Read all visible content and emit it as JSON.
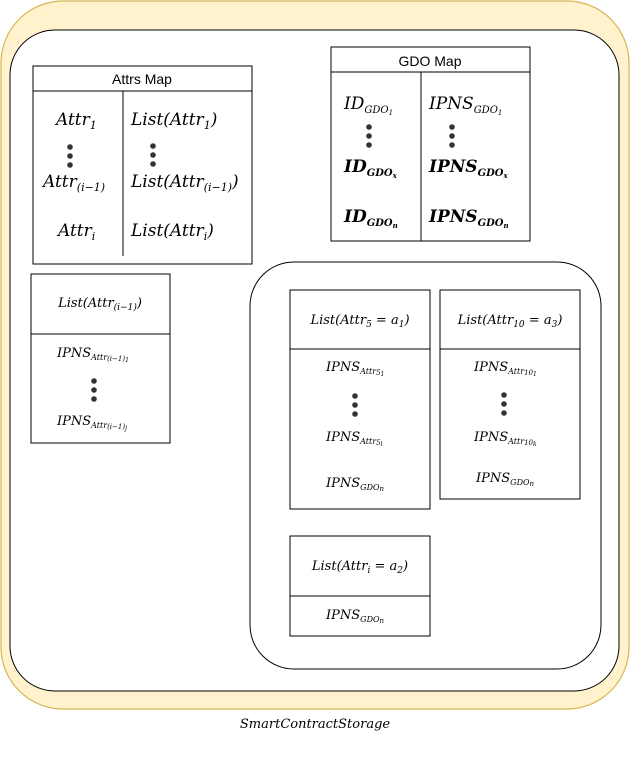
{
  "container": {
    "caption": "SmartContractStorage",
    "fill": "#fff2cc",
    "stroke": "#d6b656"
  },
  "attrs_map": {
    "title": "Attrs Map",
    "rows": [
      {
        "key": "Attr",
        "key_sub": "1",
        "value_pre": "List(Attr",
        "value_sub": "1",
        "value_post": ")"
      },
      {
        "key": "Attr",
        "key_sub": "(i−1)",
        "value_pre": "List(Attr",
        "value_sub": "(i−1)",
        "value_post": ")"
      },
      {
        "key": "Attr",
        "key_sub": "i",
        "value_pre": "List(Attr",
        "value_sub": "i",
        "value_post": ")"
      }
    ]
  },
  "gdo_map": {
    "title": "GDO Map",
    "rows": [
      {
        "key": "ID",
        "key_sub": "GDO",
        "key_subsub": "1",
        "value": "IPNS",
        "value_sub": "GDO",
        "value_subsub": "1",
        "bold": false
      },
      {
        "key": "ID",
        "key_sub": "GDO",
        "key_subsub": "x",
        "value": "IPNS",
        "value_sub": "GDO",
        "value_subsub": "x",
        "bold": true
      },
      {
        "key": "ID",
        "key_sub": "GDO",
        "key_subsub": "n",
        "value": "IPNS",
        "value_sub": "GDO",
        "value_subsub": "n",
        "bold": true
      }
    ]
  },
  "list_attr_i1": {
    "header_pre": "List(Attr",
    "header_sub": "(i−1)",
    "header_post": ")",
    "items": [
      {
        "main": "IPNS",
        "sub": "Attr",
        "subsub": "(i−1)",
        "subsubsub": "1"
      },
      {
        "main": "IPNS",
        "sub": "Attr",
        "subsub": "(i−1)",
        "subsubsub": "j"
      }
    ]
  },
  "list_attr5": {
    "header_pre": "List(Attr",
    "header_sub": "5",
    "header_mid": " = a",
    "header_sub2": "1",
    "header_post": ")",
    "items": [
      {
        "main": "IPNS",
        "sub": "Attr",
        "subsub": "5",
        "subsubsub": "1"
      },
      {
        "main": "IPNS",
        "sub": "Attr",
        "subsub": "5",
        "subsubsub": "l"
      },
      {
        "main": "IPNS",
        "sub": "GDO",
        "subsub": "n",
        "subsubsub": ""
      }
    ]
  },
  "list_attr10": {
    "header_pre": "List(Attr",
    "header_sub": "10",
    "header_mid": " = a",
    "header_sub2": "3",
    "header_post": ")",
    "items": [
      {
        "main": "IPNS",
        "sub": "Attr",
        "subsub": "10",
        "subsubsub": "1"
      },
      {
        "main": "IPNS",
        "sub": "Attr",
        "subsub": "10",
        "subsubsub": "k"
      },
      {
        "main": "IPNS",
        "sub": "GDO",
        "subsub": "n",
        "subsubsub": ""
      }
    ]
  },
  "list_attri": {
    "header_pre": "List(Attr",
    "header_sub": "i",
    "header_mid": " = a",
    "header_sub2": "2",
    "header_post": ")",
    "items": [
      {
        "main": "IPNS",
        "sub": "GDO",
        "subsub": "n",
        "subsubsub": ""
      }
    ]
  }
}
